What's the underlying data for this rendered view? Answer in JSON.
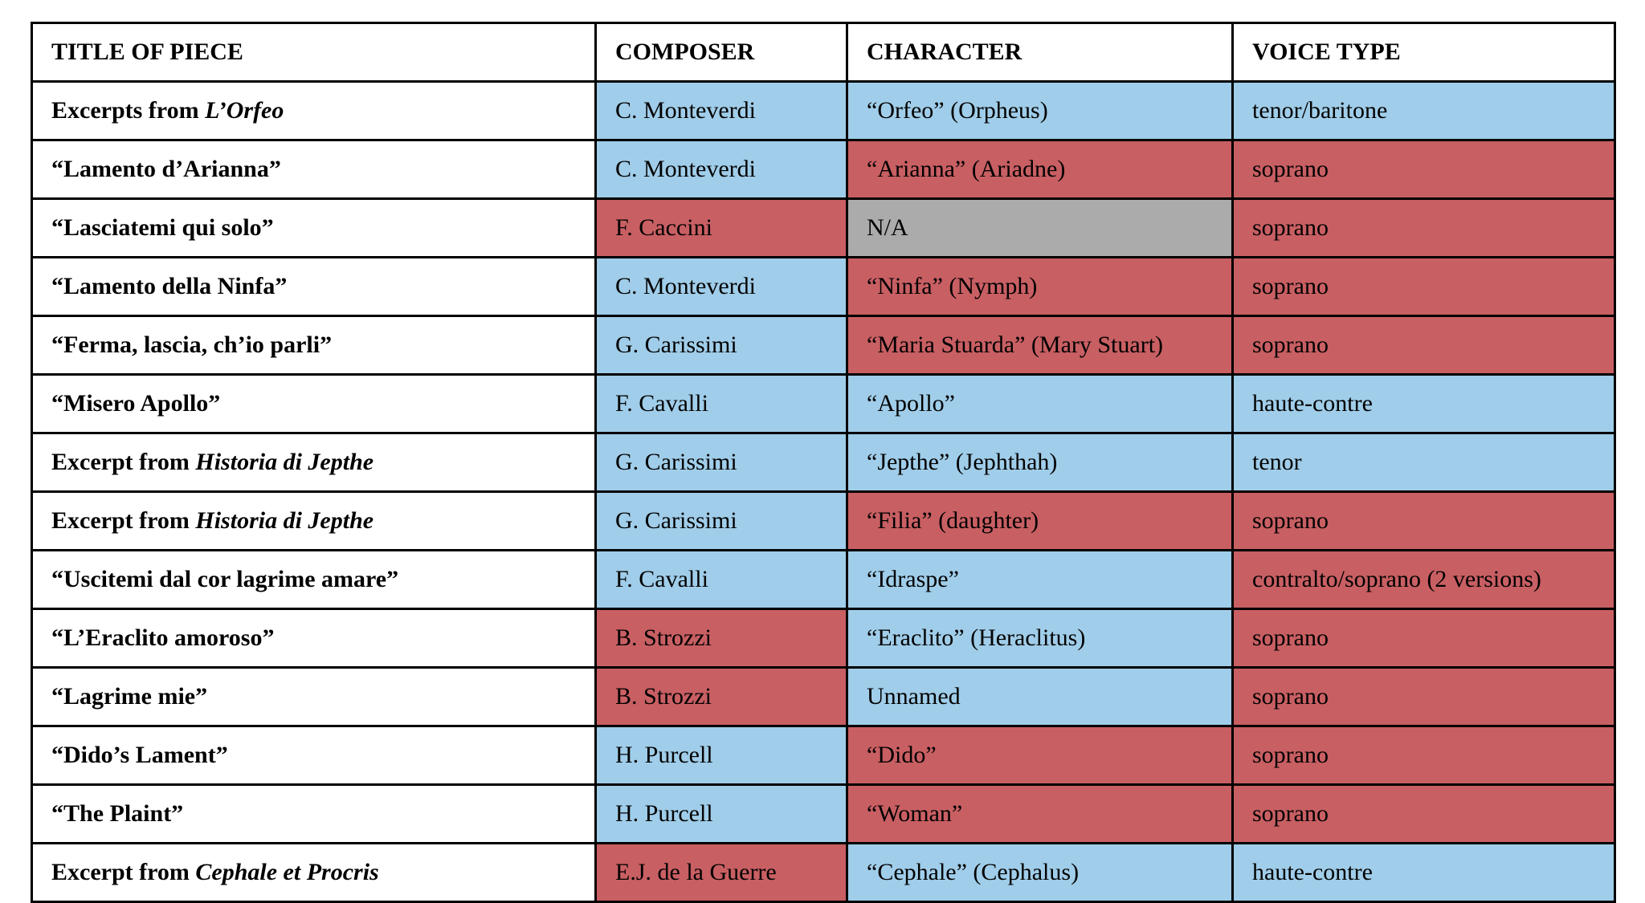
{
  "table": {
    "colors": {
      "blue": "#A0CDE9",
      "red": "#C85F63",
      "gray": "#ABABAB",
      "white": "#FFFFFF",
      "border": "#000000"
    },
    "columns": [
      {
        "label": "TITLE OF PIECE"
      },
      {
        "label": "COMPOSER"
      },
      {
        "label": "CHARACTER"
      },
      {
        "label": "VOICE TYPE"
      }
    ],
    "rows": [
      {
        "title_segments": [
          {
            "text": "Excerpts from ",
            "italic": false
          },
          {
            "text": "L’Orfeo",
            "italic": true
          }
        ],
        "composer": {
          "text": "C. Monteverdi",
          "color": "blue"
        },
        "character": {
          "text": "“Orfeo” (Orpheus)",
          "color": "blue"
        },
        "voice": {
          "text": "tenor/baritone",
          "color": "blue"
        }
      },
      {
        "title_segments": [
          {
            "text": "“Lamento d’Arianna”",
            "italic": false
          }
        ],
        "composer": {
          "text": "C. Monteverdi",
          "color": "blue"
        },
        "character": {
          "text": "“Arianna” (Ariadne)",
          "color": "red"
        },
        "voice": {
          "text": "soprano",
          "color": "red"
        }
      },
      {
        "title_segments": [
          {
            "text": "“Lasciatemi qui solo”",
            "italic": false
          }
        ],
        "composer": {
          "text": "F. Caccini",
          "color": "red"
        },
        "character": {
          "text": "N/A",
          "color": "gray"
        },
        "voice": {
          "text": "soprano",
          "color": "red"
        }
      },
      {
        "title_segments": [
          {
            "text": "“Lamento della Ninfa”",
            "italic": false
          }
        ],
        "composer": {
          "text": "C. Monteverdi",
          "color": "blue"
        },
        "character": {
          "text": "“Ninfa” (Nymph)",
          "color": "red"
        },
        "voice": {
          "text": "soprano",
          "color": "red"
        }
      },
      {
        "title_segments": [
          {
            "text": "“Ferma, lascia, ch’io parli”",
            "italic": false
          }
        ],
        "composer": {
          "text": "G. Carissimi",
          "color": "blue"
        },
        "character": {
          "text": "“Maria Stuarda” (Mary Stuart)",
          "color": "red"
        },
        "voice": {
          "text": "soprano",
          "color": "red"
        }
      },
      {
        "title_segments": [
          {
            "text": "“Misero Apollo”",
            "italic": false
          }
        ],
        "composer": {
          "text": "F. Cavalli",
          "color": "blue"
        },
        "character": {
          "text": "“Apollo”",
          "color": "blue"
        },
        "voice": {
          "text": "haute-contre",
          "color": "blue"
        }
      },
      {
        "title_segments": [
          {
            "text": "Excerpt from ",
            "italic": false
          },
          {
            "text": "Historia di Jepthe",
            "italic": true
          }
        ],
        "composer": {
          "text": "G. Carissimi",
          "color": "blue"
        },
        "character": {
          "text": "“Jepthe” (Jephthah)",
          "color": "blue"
        },
        "voice": {
          "text": "tenor",
          "color": "blue"
        }
      },
      {
        "title_segments": [
          {
            "text": "Excerpt from ",
            "italic": false
          },
          {
            "text": "Historia di Jepthe",
            "italic": true
          }
        ],
        "composer": {
          "text": "G. Carissimi",
          "color": "blue"
        },
        "character": {
          "text": "“Filia” (daughter)",
          "color": "red"
        },
        "voice": {
          "text": "soprano",
          "color": "red"
        }
      },
      {
        "title_segments": [
          {
            "text": "“Uscitemi dal cor lagrime amare”",
            "italic": false
          }
        ],
        "composer": {
          "text": "F. Cavalli",
          "color": "blue"
        },
        "character": {
          "text": "“Idraspe”",
          "color": "blue"
        },
        "voice": {
          "text": "contralto/soprano (2 versions)",
          "color": "red"
        }
      },
      {
        "title_segments": [
          {
            "text": "“L’Eraclito amoroso”",
            "italic": false
          }
        ],
        "composer": {
          "text": "B. Strozzi",
          "color": "red"
        },
        "character": {
          "text": "“Eraclito” (Heraclitus)",
          "color": "blue"
        },
        "voice": {
          "text": "soprano",
          "color": "red"
        }
      },
      {
        "title_segments": [
          {
            "text": "“Lagrime mie”",
            "italic": false
          }
        ],
        "composer": {
          "text": "B. Strozzi",
          "color": "red"
        },
        "character": {
          "text": "Unnamed",
          "color": "blue"
        },
        "voice": {
          "text": "soprano",
          "color": "red"
        }
      },
      {
        "title_segments": [
          {
            "text": "“Dido’s Lament”",
            "italic": false
          }
        ],
        "composer": {
          "text": "H. Purcell",
          "color": "blue"
        },
        "character": {
          "text": "“Dido”",
          "color": "red"
        },
        "voice": {
          "text": "soprano",
          "color": "red"
        }
      },
      {
        "title_segments": [
          {
            "text": "“The Plaint”",
            "italic": false
          }
        ],
        "composer": {
          "text": "H. Purcell",
          "color": "blue"
        },
        "character": {
          "text": "“Woman”",
          "color": "red"
        },
        "voice": {
          "text": "soprano",
          "color": "red"
        }
      },
      {
        "title_segments": [
          {
            "text": "Excerpt from ",
            "italic": false
          },
          {
            "text": "Cephale et Procris",
            "italic": true
          }
        ],
        "composer": {
          "text": "E.J. de la Guerre",
          "color": "red"
        },
        "character": {
          "text": "“Cephale” (Cephalus)",
          "color": "blue"
        },
        "voice": {
          "text": "haute-contre",
          "color": "blue"
        }
      }
    ]
  }
}
